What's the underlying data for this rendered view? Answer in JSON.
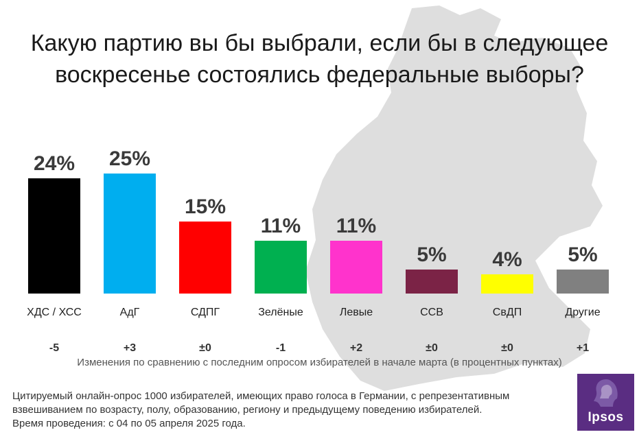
{
  "title": {
    "line1": "Какую партию вы бы выбрали, если бы в следующее",
    "line2": "воскресенье состоялись федеральные выборы?"
  },
  "chart_data": {
    "type": "bar",
    "title": "Какую партию вы бы выбрали, если бы в следующее воскресенье состоялись федеральные выборы?",
    "categories": [
      "ХДС / ХСС",
      "АдГ",
      "СДПГ",
      "Зелёные",
      "Левые",
      "ССВ",
      "СвДП",
      "Другие"
    ],
    "values": [
      24,
      25,
      15,
      11,
      11,
      5,
      4,
      5
    ],
    "value_labels": [
      "24%",
      "25%",
      "15%",
      "11%",
      "11%",
      "5%",
      "4%",
      "5%"
    ],
    "changes": [
      "-5",
      "+3",
      "±0",
      "-1",
      "+2",
      "±0",
      "±0",
      "+1"
    ],
    "colors": [
      "#000000",
      "#00aeef",
      "#ff0000",
      "#00b050",
      "#ff33cc",
      "#7b2346",
      "#ffff00",
      "#808080"
    ],
    "unit": "%",
    "ylim": [
      0,
      25
    ],
    "xlabel": "",
    "ylabel": ""
  },
  "changes_caption": "Изменения по сравнению с последним опросом избирателей в начале марта (в процентных пунктах)",
  "footnote": {
    "line1": "Цитируемый онлайн-опрос 1000 избирателей, имеющих право голоса в Германии, с репрезентативным",
    "line2": "взвешиванием по возрасту, полу, образованию, региону и предыдущему поведению избирателей.",
    "line3": "Время проведения: с 04 по 05 апреля 2025 года."
  },
  "logo": {
    "text": "Ipsos",
    "color": "#5a2d82"
  }
}
